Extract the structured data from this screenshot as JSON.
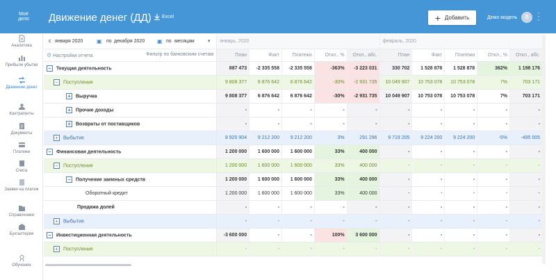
{
  "header": {
    "logo": "Моё дело",
    "title": "Движение денег (ДД)",
    "excel_label": "Excel",
    "add_label": "Добавить",
    "user_name": "Демо модель",
    "avatar_letter": "В"
  },
  "sidebar": {
    "items": [
      {
        "label": "Аналитика",
        "icon": "analytics-icon"
      },
      {
        "label": "Прибыли убытки",
        "icon": "bar-chart-icon"
      },
      {
        "label": "Движение денег",
        "icon": "money-flow-icon"
      },
      {
        "label": "Контрагенты",
        "icon": "people-icon"
      },
      {
        "label": "Документы",
        "icon": "document-icon"
      },
      {
        "label": "Платежи",
        "icon": "payment-icon"
      },
      {
        "label": "Счета",
        "icon": "bill-icon"
      },
      {
        "label": "Заявки на платеж",
        "icon": "request-icon"
      },
      {
        "label": "Справочники",
        "icon": "folder-icon"
      },
      {
        "label": "Бухгалтерия",
        "icon": "accounting-icon"
      },
      {
        "label": "Обучение",
        "icon": "education-icon"
      }
    ]
  },
  "filters": {
    "from_prefix": "с",
    "from_value": "января 2020",
    "to_prefix": "по",
    "to_value": "декабря 2020",
    "group_prefix": "по",
    "group_value": "месяцам",
    "settings_label": "Настройки отчета",
    "bank_filter_label": "Фильтр по банковским счетам"
  },
  "periods": [
    "январь, 2020",
    "февраль, 2020"
  ],
  "columns": [
    "План",
    "Факт",
    "Платежи",
    "Откл., %",
    "Откл., абс.",
    "План",
    "Факт",
    "Платежи",
    "Откл., %",
    "Откл., абс."
  ],
  "rows": [
    {
      "label": "Текущая деятельность",
      "values": [
        "887 473",
        "-2 335 558",
        "-2 335 558",
        "-363%",
        "-3 223 031",
        "330 702",
        "1 528 878",
        "1 528 878",
        "362%",
        "1 198 176"
      ]
    },
    {
      "label": "Поступления",
      "values": [
        "9 808 377",
        "6 876 642",
        "6 876 642",
        "-30%",
        "-2 931 735",
        "10 049 907",
        "10 753 078",
        "10 753 078",
        "7%",
        "703 171"
      ]
    },
    {
      "label": "Выручка",
      "values": [
        "9 808 377",
        "6 876 642",
        "6 876 642",
        "-30%",
        "-2 931 735",
        "10 049 907",
        "10 753 078",
        "10 753 078",
        "7%",
        "703 171"
      ]
    },
    {
      "label": "Прочие доходы",
      "values": [
        "-",
        "-",
        "-",
        "-",
        "-",
        "-",
        "-",
        "-",
        "-",
        "-"
      ]
    },
    {
      "label": "Возвраты от поставщиков",
      "values": [
        "-",
        "-",
        "-",
        "-",
        "-",
        "-",
        "-",
        "-",
        "-",
        "-"
      ]
    },
    {
      "label": "Выбытия",
      "values": [
        "8 920 904",
        "9 212 200",
        "9 212 200",
        "3%",
        "291 296",
        "9 719 205",
        "9 224 200",
        "9 224 200",
        "-5%",
        "-495 005"
      ]
    },
    {
      "label": "Финансовая деятельность",
      "values": [
        "1 200 000",
        "1 600 000",
        "1 600 000",
        "33%",
        "400 000",
        "-",
        "-",
        "-",
        "-",
        "-"
      ]
    },
    {
      "label": "Поступления",
      "values": [
        "1 200 000",
        "1 600 000",
        "1 600 000",
        "33%",
        "400 000",
        "-",
        "-",
        "-",
        "-",
        "-"
      ]
    },
    {
      "label": "Получение заемных средств",
      "values": [
        "1 200 000",
        "1 600 000",
        "1 600 000",
        "33%",
        "400 000",
        "-",
        "-",
        "-",
        "-",
        "-"
      ]
    },
    {
      "label": "Оборотный кредит",
      "values": [
        "1 200 000",
        "1 600 000",
        "1 600 000",
        "33%",
        "400 000",
        "-",
        "-",
        "-",
        "-",
        "-"
      ]
    },
    {
      "label": "Продажа долей",
      "values": [
        "-",
        "-",
        "-",
        "-",
        "-",
        "-",
        "-",
        "-",
        "-",
        "-"
      ]
    },
    {
      "label": "Выбытия",
      "values": [
        "-",
        "-",
        "-",
        "-",
        "-",
        "-",
        "-",
        "-",
        "-",
        "-"
      ]
    },
    {
      "label": "Инвестиционная деятельность",
      "values": [
        "-3 600 000",
        "-",
        "-",
        "100%",
        "3 600 000",
        "-",
        "-",
        "-",
        "-",
        "-"
      ]
    },
    {
      "label": "Поступления",
      "values": [
        "-",
        "-",
        "-",
        "-",
        "-",
        "-",
        "-",
        "-",
        "-",
        "-"
      ]
    }
  ]
}
